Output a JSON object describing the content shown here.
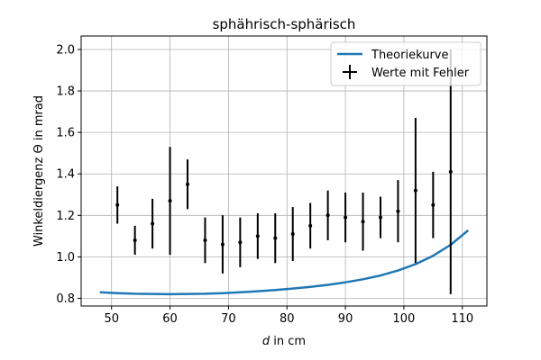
{
  "chart_data": {
    "type": "scatter",
    "title": "sphährisch-sphärisch",
    "xlabel_var": "d",
    "xlabel_rest": " in cm",
    "ylabel": "Winkeldiergenz Θ in mrad",
    "xlim": [
      44.8,
      114.2
    ],
    "ylim": [
      0.763,
      2.065
    ],
    "xticks": [
      50,
      60,
      70,
      80,
      90,
      100,
      110
    ],
    "yticks": [
      0.8,
      1.0,
      1.2,
      1.4,
      1.6,
      1.8,
      2.0
    ],
    "xtick_labels": [
      "50",
      "60",
      "70",
      "80",
      "90",
      "100",
      "110"
    ],
    "ytick_labels": [
      "0.8",
      "1.0",
      "1.2",
      "1.4",
      "1.6",
      "1.8",
      "2.0"
    ],
    "grid": true,
    "legend_position": "upper-right",
    "colors": {
      "curve": "#1f77b4",
      "points": "#000000",
      "grid": "#b0b0b0"
    },
    "series": [
      {
        "name": "Theoriekurve",
        "kind": "line",
        "x": [
          48,
          51,
          54,
          57,
          60,
          63,
          66,
          69,
          72,
          75,
          78,
          81,
          84,
          87,
          90,
          93,
          96,
          99,
          102,
          105,
          108,
          111
        ],
        "y": [
          0.829,
          0.825,
          0.822,
          0.821,
          0.82,
          0.821,
          0.822,
          0.825,
          0.829,
          0.834,
          0.84,
          0.847,
          0.855,
          0.865,
          0.877,
          0.892,
          0.91,
          0.934,
          0.965,
          1.005,
          1.058,
          1.128
        ]
      },
      {
        "name": "Werte mit Fehler",
        "kind": "errorbar",
        "x": [
          51,
          54,
          57,
          60,
          63,
          66,
          69,
          72,
          75,
          78,
          81,
          84,
          87,
          90,
          93,
          96,
          99,
          102,
          105,
          108
        ],
        "y": [
          1.25,
          1.08,
          1.16,
          1.27,
          1.35,
          1.08,
          1.06,
          1.07,
          1.1,
          1.09,
          1.11,
          1.15,
          1.2,
          1.19,
          1.17,
          1.19,
          1.22,
          1.32,
          1.25,
          1.41
        ],
        "yerr": [
          0.09,
          0.07,
          0.12,
          0.26,
          0.12,
          0.11,
          0.14,
          0.12,
          0.11,
          0.12,
          0.13,
          0.11,
          0.12,
          0.12,
          0.14,
          0.1,
          0.15,
          0.35,
          0.16,
          0.59
        ]
      }
    ]
  }
}
